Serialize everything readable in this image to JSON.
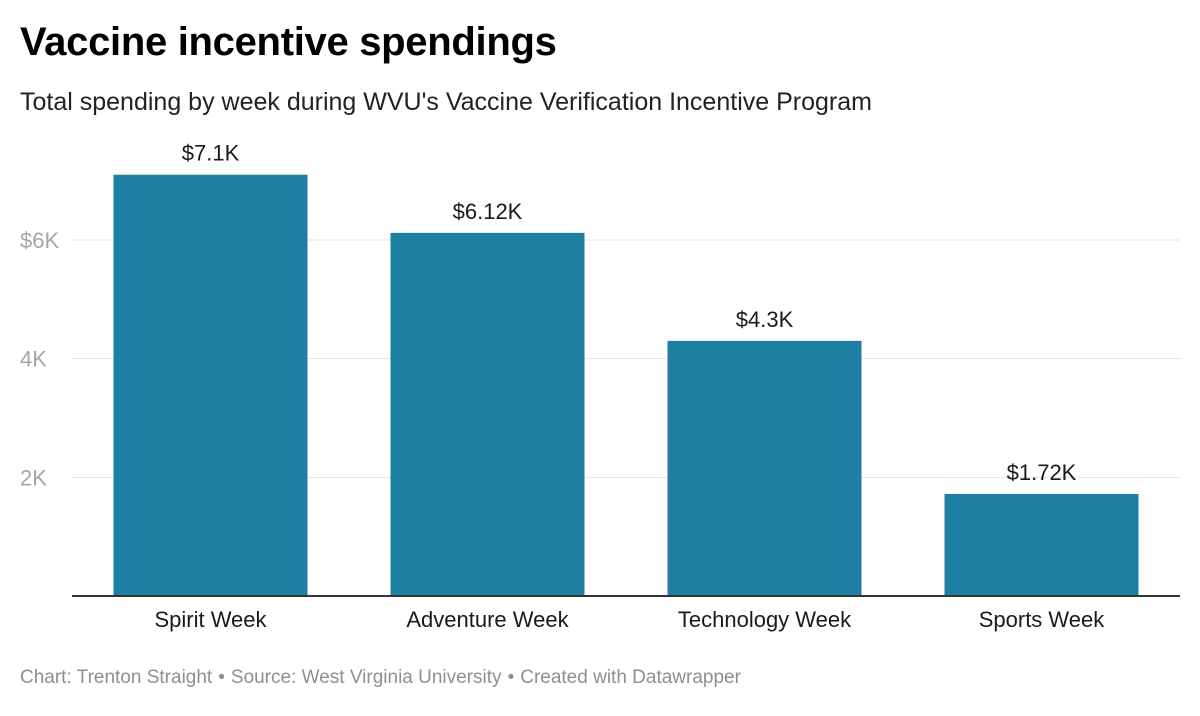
{
  "title": "Vaccine incentive spendings",
  "subtitle": "Total spending by week during WVU's Vaccine Verification Incentive Program",
  "footer": {
    "chart_credit": "Chart: Trenton Straight",
    "source": "Source: West Virginia University",
    "created_with": "Created with Datawrapper",
    "separator": "•"
  },
  "colors": {
    "bar": "#1f7fa2",
    "grid": "#e3e3e3",
    "axis": "#333333",
    "tick_label": "#a6a6a6"
  },
  "chart_data": {
    "type": "bar",
    "title": "Vaccine incentive spendings",
    "subtitle": "Total spending by week during WVU's Vaccine Verification Incentive Program",
    "categories": [
      "Spirit Week",
      "Adventure Week",
      "Technology Week",
      "Sports Week"
    ],
    "values": [
      7100,
      6120,
      4300,
      1720
    ],
    "data_labels": [
      "$7.1K",
      "$6.12K",
      "$4.3K",
      "$1.72K"
    ],
    "xlabel": "",
    "ylabel": "",
    "ylim": [
      0,
      7100
    ],
    "y_ticks": [
      2000,
      4000,
      6000
    ],
    "y_tick_labels": [
      "2K",
      "4K",
      "$6K"
    ],
    "grid": true
  }
}
